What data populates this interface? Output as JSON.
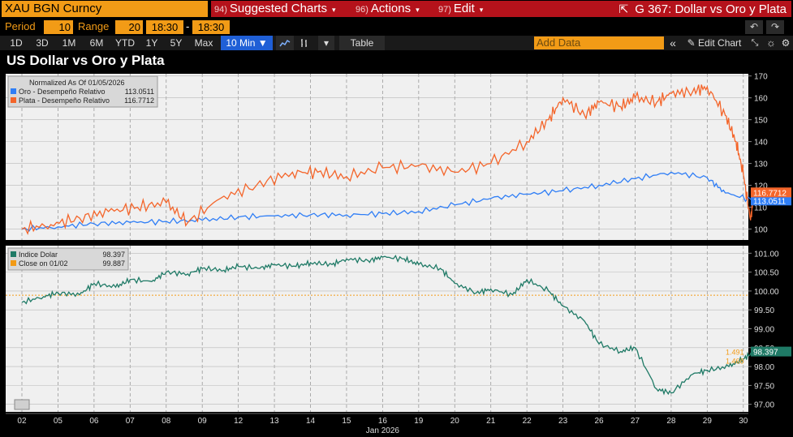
{
  "header": {
    "security": "XAU BGN Curncy",
    "menus": [
      {
        "num": "94)",
        "label": "Suggested Charts"
      },
      {
        "num": "96)",
        "label": "Actions"
      },
      {
        "num": "97)",
        "label": "Edit"
      }
    ],
    "graph_title": "G 367: Dollar vs Oro y Plata"
  },
  "controls": {
    "period_label": "Period",
    "period_value": "10",
    "range_label": "Range",
    "range_value": "20",
    "time_from": "18:30",
    "time_to": "18:30",
    "dash": "-"
  },
  "toolbar": {
    "ranges": [
      "1D",
      "3D",
      "1M",
      "6M",
      "YTD",
      "1Y",
      "5Y",
      "Max"
    ],
    "interval": "10 Min ▼",
    "table_label": "Table",
    "add_data_placeholder": "Add Data",
    "edit_chart_label": "Edit Chart"
  },
  "chart_title": "US Dollar vs Oro y Plata",
  "chart_data": [
    {
      "type": "line",
      "legend_header": "Normalized As Of 01/05/2026",
      "legend_position": "top-left",
      "ylim": [
        95,
        171
      ],
      "yticks": [
        100,
        110,
        120,
        130,
        140,
        150,
        160,
        170
      ],
      "series": [
        {
          "name": "Oro - Desempeño Relativo",
          "last": "113.0511",
          "color": "#2f7ef6",
          "x": [
            0,
            1,
            2,
            3,
            4,
            5,
            6,
            7,
            8,
            9,
            10,
            11,
            12,
            13,
            14,
            15,
            16,
            17,
            18,
            19,
            19.5,
            20.3
          ],
          "values": [
            100,
            101,
            102.5,
            103,
            103.5,
            104,
            105.5,
            106,
            106.5,
            106.5,
            107,
            108,
            111,
            114,
            116,
            117.5,
            120,
            123,
            126,
            123.5,
            116.5,
            113.05
          ]
        },
        {
          "name": "Plata - Desempeño Relativo",
          "last": "116.7712",
          "color": "#f4652a",
          "x": [
            0,
            0.8,
            1.6,
            2.4,
            3.2,
            4,
            4.6,
            5.5,
            6.5,
            7.5,
            8.2,
            9,
            10,
            11,
            12,
            13,
            14,
            14.6,
            15,
            15.6,
            16,
            16.6,
            17,
            17.6,
            18,
            18.6,
            19,
            19.5,
            19.8,
            20,
            20.2,
            20.3
          ],
          "values": [
            100,
            102,
            105,
            108,
            110,
            112,
            103,
            114,
            120,
            126,
            126,
            124,
            128,
            129,
            126,
            130,
            140,
            150,
            160,
            152,
            158,
            156,
            160,
            158,
            162,
            163,
            165,
            152,
            140,
            125,
            104,
            116.77
          ]
        }
      ]
    },
    {
      "type": "line",
      "legend_position": "top-left",
      "ylim": [
        96.8,
        101.2
      ],
      "yticks": [
        97.0,
        97.5,
        98.0,
        98.5,
        99.0,
        99.5,
        100.0,
        100.5,
        101.0
      ],
      "reference": {
        "name": "Close on 01/02",
        "value": 99.887,
        "label": "99.887",
        "color": "#f29b16"
      },
      "markers": [
        "1.491",
        "1.468"
      ],
      "series": [
        {
          "name": "Indice Dolar",
          "last": "98.397",
          "color": "#1f7a66",
          "x": [
            0,
            0.6,
            1,
            1.6,
            2,
            2.6,
            3,
            3.6,
            4,
            4.6,
            5,
            5.6,
            6,
            6.6,
            7,
            7.6,
            8,
            8.6,
            9,
            9.6,
            10,
            10.6,
            11,
            11.6,
            12,
            12.6,
            13,
            13.6,
            14,
            14.6,
            15,
            15.6,
            16,
            16.6,
            17,
            17.6,
            18,
            18.6,
            19,
            19.6,
            20,
            20.3
          ],
          "values": [
            99.7,
            99.85,
            99.95,
            99.9,
            100.2,
            100.1,
            100.3,
            100.25,
            100.5,
            100.45,
            100.6,
            100.55,
            100.65,
            100.6,
            100.7,
            100.65,
            100.75,
            100.7,
            100.85,
            100.8,
            100.9,
            100.85,
            100.7,
            100.6,
            100.2,
            99.95,
            100.05,
            99.9,
            100.3,
            100.0,
            99.6,
            99.2,
            98.6,
            98.4,
            98.5,
            97.4,
            97.3,
            97.8,
            97.9,
            98.0,
            98.2,
            98.397
          ]
        }
      ]
    }
  ],
  "x_axis": {
    "ticks": [
      "02",
      "05",
      "06",
      "07",
      "08",
      "09",
      "12",
      "13",
      "14",
      "15",
      "16",
      "19",
      "20",
      "21",
      "22",
      "23",
      "26",
      "27",
      "28",
      "29",
      "30"
    ],
    "month_label": "Jan 2026"
  }
}
